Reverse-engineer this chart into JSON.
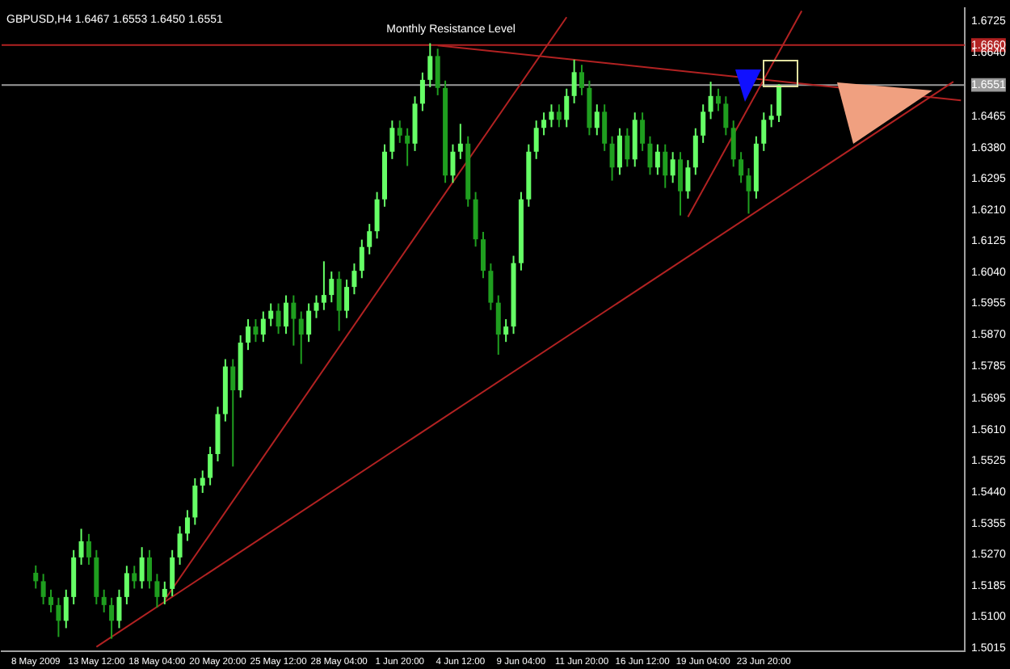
{
  "chart_data": {
    "type": "candlestick",
    "title": "GBPUSD,H4 1.6467 1.6553 1.6450 1.6551",
    "categories": [
      "8 May 2009",
      null,
      null,
      null,
      null,
      null,
      null,
      null,
      "13 May 12:00",
      null,
      null,
      null,
      null,
      null,
      null,
      null,
      "18 May 04:00",
      null,
      null,
      null,
      null,
      null,
      null,
      null,
      "20 May 20:00",
      null,
      null,
      null,
      null,
      null,
      null,
      null,
      "25 May 12:00",
      null,
      null,
      null,
      null,
      null,
      null,
      null,
      "28 May 04:00",
      null,
      null,
      null,
      null,
      null,
      null,
      null,
      "1 Jun 20:00",
      null,
      null,
      null,
      null,
      null,
      null,
      null,
      "4 Jun 12:00",
      null,
      null,
      null,
      null,
      null,
      null,
      null,
      "9 Jun 04:00",
      null,
      null,
      null,
      null,
      null,
      null,
      null,
      "11 Jun 20:00",
      null,
      null,
      null,
      null,
      null,
      null,
      null,
      "16 Jun 12:00",
      null,
      null,
      null,
      null,
      null,
      null,
      null,
      "19 Jun 04:00",
      null,
      null,
      null,
      null,
      null,
      null,
      null,
      "23 Jun 20:00",
      null,
      null,
      null,
      null,
      null,
      null,
      null,
      null,
      null,
      null,
      null,
      null,
      null,
      null,
      null,
      null,
      null,
      null,
      null,
      null,
      null,
      null,
      null,
      null,
      null,
      null
    ],
    "ohlc": [
      [
        1.522,
        1.524,
        1.5177,
        1.5197
      ],
      [
        1.5197,
        1.5217,
        1.5134,
        1.5154
      ],
      [
        1.5154,
        1.5174,
        1.5112,
        1.5132
      ],
      [
        1.5132,
        1.5152,
        1.5045,
        1.5089
      ],
      [
        1.5089,
        1.5174,
        1.5069,
        1.5154
      ],
      [
        1.5154,
        1.5282,
        1.5134,
        1.5262
      ],
      [
        1.5262,
        1.534,
        1.5242,
        1.5306
      ],
      [
        1.5306,
        1.5326,
        1.5242,
        1.5262
      ],
      [
        1.5262,
        1.5282,
        1.5134,
        1.5154
      ],
      [
        1.5154,
        1.5174,
        1.5112,
        1.5132
      ],
      [
        1.5132,
        1.5152,
        1.504,
        1.5089
      ],
      [
        1.5089,
        1.5174,
        1.5069,
        1.5154
      ],
      [
        1.5154,
        1.5239,
        1.5134,
        1.5219
      ],
      [
        1.5219,
        1.5239,
        1.5177,
        1.5197
      ],
      [
        1.5197,
        1.529,
        1.5177,
        1.5262
      ],
      [
        1.5262,
        1.5282,
        1.5177,
        1.5197
      ],
      [
        1.5197,
        1.5217,
        1.5125,
        1.5154
      ],
      [
        1.5154,
        1.5196,
        1.5134,
        1.5176
      ],
      [
        1.5176,
        1.5282,
        1.5156,
        1.5262
      ],
      [
        1.5262,
        1.5347,
        1.5242,
        1.5327
      ],
      [
        1.5327,
        1.5391,
        1.5307,
        1.5371
      ],
      [
        1.5371,
        1.5478,
        1.5351,
        1.5458
      ],
      [
        1.5458,
        1.5499,
        1.5438,
        1.5479
      ],
      [
        1.5479,
        1.5564,
        1.5459,
        1.5544
      ],
      [
        1.5544,
        1.5673,
        1.5524,
        1.5653
      ],
      [
        1.5653,
        1.5803,
        1.5633,
        1.5783
      ],
      [
        1.5783,
        1.5803,
        1.551,
        1.5718
      ],
      [
        1.5718,
        1.5868,
        1.5698,
        1.5848
      ],
      [
        1.5848,
        1.5912,
        1.5828,
        1.5892
      ],
      [
        1.5892,
        1.5912,
        1.585,
        1.587
      ],
      [
        1.587,
        1.5933,
        1.585,
        1.5913
      ],
      [
        1.5913,
        1.5955,
        1.5893,
        1.5935
      ],
      [
        1.5935,
        1.5955,
        1.5872,
        1.5892
      ],
      [
        1.5892,
        1.5977,
        1.5872,
        1.5957
      ],
      [
        1.5957,
        1.5977,
        1.584,
        1.5913
      ],
      [
        1.5913,
        1.5933,
        1.579,
        1.587
      ],
      [
        1.587,
        1.5955,
        1.585,
        1.5935
      ],
      [
        1.5935,
        1.5977,
        1.5915,
        1.5957
      ],
      [
        1.5957,
        1.607,
        1.5937,
        1.5978
      ],
      [
        1.5978,
        1.6042,
        1.5958,
        1.6022
      ],
      [
        1.6022,
        1.6042,
        1.588,
        1.5935
      ],
      [
        1.5935,
        1.602,
        1.5915,
        1.6
      ],
      [
        1.6,
        1.6064,
        1.598,
        1.6044
      ],
      [
        1.6044,
        1.6129,
        1.6024,
        1.6109
      ],
      [
        1.6109,
        1.6172,
        1.6089,
        1.6152
      ],
      [
        1.6152,
        1.6259,
        1.6132,
        1.6239
      ],
      [
        1.6239,
        1.6389,
        1.6219,
        1.6369
      ],
      [
        1.6369,
        1.6454,
        1.6349,
        1.6434
      ],
      [
        1.6434,
        1.6454,
        1.6393,
        1.6413
      ],
      [
        1.6413,
        1.6433,
        1.633,
        1.6391
      ],
      [
        1.6391,
        1.652,
        1.6371,
        1.65
      ],
      [
        1.65,
        1.6585,
        1.648,
        1.6565
      ],
      [
        1.6565,
        1.6665,
        1.6545,
        1.663
      ],
      [
        1.663,
        1.665,
        1.6523,
        1.6543
      ],
      [
        1.6543,
        1.6563,
        1.6284,
        1.6304
      ],
      [
        1.6304,
        1.6389,
        1.6284,
        1.6369
      ],
      [
        1.6369,
        1.6445,
        1.6349,
        1.6391
      ],
      [
        1.6391,
        1.6411,
        1.6219,
        1.6239
      ],
      [
        1.6239,
        1.6259,
        1.611,
        1.613
      ],
      [
        1.613,
        1.615,
        1.6024,
        1.6044
      ],
      [
        1.6044,
        1.6064,
        1.5937,
        1.5957
      ],
      [
        1.5957,
        1.5977,
        1.5815,
        1.587
      ],
      [
        1.587,
        1.5912,
        1.585,
        1.5892
      ],
      [
        1.5892,
        1.6085,
        1.5872,
        1.6065
      ],
      [
        1.6065,
        1.6259,
        1.6045,
        1.6239
      ],
      [
        1.6239,
        1.6389,
        1.6219,
        1.6369
      ],
      [
        1.6369,
        1.6454,
        1.6349,
        1.6434
      ],
      [
        1.6434,
        1.6476,
        1.6414,
        1.6456
      ],
      [
        1.6456,
        1.6498,
        1.6436,
        1.6478
      ],
      [
        1.6478,
        1.6498,
        1.6436,
        1.6456
      ],
      [
        1.6456,
        1.6541,
        1.6436,
        1.6521
      ],
      [
        1.6521,
        1.662,
        1.6501,
        1.6586
      ],
      [
        1.6586,
        1.6606,
        1.6523,
        1.6543
      ],
      [
        1.6543,
        1.6563,
        1.6414,
        1.6434
      ],
      [
        1.6434,
        1.6498,
        1.6414,
        1.6478
      ],
      [
        1.6478,
        1.6498,
        1.6371,
        1.6391
      ],
      [
        1.6391,
        1.6411,
        1.629,
        1.6326
      ],
      [
        1.6326,
        1.6433,
        1.6306,
        1.6413
      ],
      [
        1.6413,
        1.6433,
        1.6328,
        1.6348
      ],
      [
        1.6348,
        1.6476,
        1.6328,
        1.6456
      ],
      [
        1.6456,
        1.6476,
        1.6371,
        1.6391
      ],
      [
        1.6391,
        1.6411,
        1.6306,
        1.6326
      ],
      [
        1.6326,
        1.6389,
        1.6306,
        1.6369
      ],
      [
        1.6369,
        1.6389,
        1.627,
        1.6304
      ],
      [
        1.6304,
        1.6368,
        1.6284,
        1.6348
      ],
      [
        1.6348,
        1.6368,
        1.6195,
        1.6261
      ],
      [
        1.6261,
        1.6346,
        1.6241,
        1.6326
      ],
      [
        1.6326,
        1.6433,
        1.6306,
        1.6413
      ],
      [
        1.6413,
        1.6498,
        1.6393,
        1.6478
      ],
      [
        1.6478,
        1.656,
        1.6458,
        1.6521
      ],
      [
        1.6521,
        1.6541,
        1.648,
        1.65
      ],
      [
        1.65,
        1.652,
        1.6414,
        1.6434
      ],
      [
        1.6434,
        1.6454,
        1.6328,
        1.6348
      ],
      [
        1.6348,
        1.6368,
        1.6284,
        1.6304
      ],
      [
        1.6304,
        1.6324,
        1.62,
        1.6261
      ],
      [
        1.6261,
        1.6411,
        1.6241,
        1.6391
      ],
      [
        1.6391,
        1.6476,
        1.6371,
        1.6456
      ],
      [
        1.6456,
        1.6498,
        1.6436,
        1.6467
      ],
      [
        1.6467,
        1.6553,
        1.645,
        1.6551
      ],
      null,
      null,
      null,
      null,
      null,
      null,
      null,
      null,
      null,
      null,
      null,
      null,
      null,
      null,
      null,
      null,
      null,
      null,
      null,
      null,
      null,
      null,
      null,
      null
    ],
    "colors": [
      "#1f9e1f",
      "#1f9e1f",
      "#1f9e1f",
      "#1f9e1f",
      "#66ff66",
      "#66ff66",
      "#66ff66",
      "#1f9e1f",
      "#1f9e1f",
      "#1f9e1f",
      "#1f9e1f",
      "#66ff66",
      "#66ff66",
      "#1f9e1f",
      "#66ff66",
      "#1f9e1f",
      "#1f9e1f",
      "#66ff66",
      "#66ff66",
      "#66ff66",
      "#66ff66",
      "#66ff66",
      "#66ff66",
      "#66ff66",
      "#66ff66",
      "#66ff66",
      "#1f9e1f",
      "#66ff66",
      "#66ff66",
      "#1f9e1f",
      "#66ff66",
      "#66ff66",
      "#1f9e1f",
      "#66ff66",
      "#1f9e1f",
      "#1f9e1f",
      "#66ff66",
      "#66ff66",
      "#66ff66",
      "#66ff66",
      "#1f9e1f",
      "#66ff66",
      "#66ff66",
      "#66ff66",
      "#66ff66",
      "#66ff66",
      "#66ff66",
      "#66ff66",
      "#1f9e1f",
      "#1f9e1f",
      "#66ff66",
      "#66ff66",
      "#66ff66",
      "#1f9e1f",
      "#1f9e1f",
      "#66ff66",
      "#66ff66",
      "#1f9e1f",
      "#1f9e1f",
      "#1f9e1f",
      "#1f9e1f",
      "#1f9e1f",
      "#66ff66",
      "#66ff66",
      "#66ff66",
      "#66ff66",
      "#66ff66",
      "#66ff66",
      "#66ff66",
      "#1f9e1f",
      "#66ff66",
      "#66ff66",
      "#1f9e1f",
      "#1f9e1f",
      "#66ff66",
      "#1f9e1f",
      "#1f9e1f",
      "#66ff66",
      "#1f9e1f",
      "#66ff66",
      "#1f9e1f",
      "#1f9e1f",
      "#66ff66",
      "#1f9e1f",
      "#66ff66",
      "#1f9e1f",
      "#66ff66",
      "#66ff66",
      "#66ff66",
      "#66ff66",
      "#1f9e1f",
      "#1f9e1f",
      "#1f9e1f",
      "#1f9e1f",
      "#1f9e1f",
      "#66ff66",
      "#66ff66",
      "#66ff66",
      "#66ff66",
      null,
      null,
      null,
      null,
      null,
      null,
      null,
      null,
      null,
      null,
      null,
      null,
      null,
      null,
      null,
      null,
      null,
      null,
      null,
      null,
      null,
      null,
      null,
      null
    ],
    "series": [
      {
        "type": "line",
        "color": "#b22222",
        "values": [
          null,
          null,
          null,
          null,
          null,
          null,
          null,
          null,
          1.5018,
          null,
          null,
          null,
          null,
          null,
          null,
          null,
          null,
          null,
          null,
          null,
          null,
          null,
          null,
          null,
          null,
          null,
          null,
          null,
          null,
          null,
          null,
          null,
          null,
          null,
          null,
          null,
          null,
          null,
          null,
          null,
          null,
          null,
          null,
          null,
          null,
          null,
          null,
          null,
          null,
          null,
          null,
          null,
          null,
          null,
          null,
          null,
          null,
          null,
          null,
          null,
          null,
          null,
          null,
          null,
          null,
          null,
          null,
          null,
          null,
          null,
          null,
          null,
          null,
          null,
          null,
          null,
          null,
          null,
          null,
          null,
          null,
          null,
          null,
          null,
          null,
          null,
          null,
          null,
          null,
          null,
          null,
          null,
          null,
          null,
          null,
          null,
          null,
          null,
          null,
          null,
          null,
          null,
          null,
          null,
          null,
          null,
          null,
          null,
          null,
          null,
          null,
          null,
          null,
          null,
          null,
          null,
          null,
          null,
          null,
          null,
          null,
          1.656,
          null
        ]
      },
      {
        "type": "line",
        "color": "#b22222",
        "values": [
          null,
          null,
          null,
          null,
          null,
          null,
          null,
          null,
          null,
          null,
          null,
          null,
          null,
          null,
          null,
          null,
          null,
          1.5146,
          null,
          null,
          null,
          null,
          null,
          null,
          null,
          null,
          null,
          null,
          null,
          null,
          null,
          null,
          null,
          null,
          null,
          null,
          null,
          null,
          null,
          null,
          null,
          null,
          null,
          null,
          null,
          null,
          null,
          null,
          null,
          null,
          null,
          null,
          null,
          null,
          null,
          null,
          null,
          null,
          null,
          null,
          null,
          null,
          null,
          null,
          null,
          null,
          null,
          null,
          null,
          null,
          1.6736,
          null,
          null,
          null,
          null,
          null,
          null,
          null,
          null,
          null,
          null,
          null,
          null,
          null,
          null,
          null,
          null,
          null,
          null,
          null,
          null,
          null,
          null,
          null,
          null,
          null,
          null,
          null,
          null,
          null,
          null,
          null,
          null,
          null,
          null,
          null,
          null,
          null,
          null,
          null,
          null,
          null,
          null,
          null,
          null,
          null,
          null,
          null,
          null,
          null,
          null,
          null,
          null
        ]
      },
      {
        "type": "line",
        "color": "#b22222",
        "values": [
          null,
          null,
          null,
          null,
          null,
          null,
          null,
          null,
          null,
          null,
          null,
          null,
          null,
          null,
          null,
          null,
          null,
          null,
          null,
          null,
          null,
          null,
          null,
          null,
          null,
          null,
          null,
          null,
          null,
          null,
          null,
          null,
          null,
          null,
          null,
          null,
          null,
          null,
          null,
          null,
          null,
          null,
          null,
          null,
          null,
          null,
          null,
          null,
          null,
          null,
          null,
          null,
          null,
          null,
          null,
          null,
          null,
          null,
          null,
          null,
          null,
          null,
          null,
          null,
          null,
          null,
          null,
          null,
          null,
          null,
          null,
          null,
          null,
          null,
          null,
          null,
          null,
          null,
          null,
          null,
          null,
          null,
          null,
          null,
          null,
          null,
          1.6191,
          null,
          null,
          null,
          null,
          null,
          null,
          null,
          null,
          null,
          null,
          null,
          null,
          null,
          null,
          1.6753,
          null,
          null,
          null,
          null,
          null,
          null,
          null,
          null,
          null,
          null,
          null,
          null,
          null,
          null,
          null,
          null,
          null,
          null,
          null,
          null,
          null
        ]
      },
      {
        "type": "line",
        "color": "#b22222",
        "values": [
          null,
          null,
          null,
          null,
          null,
          null,
          null,
          null,
          null,
          null,
          null,
          null,
          null,
          null,
          null,
          null,
          null,
          null,
          null,
          null,
          null,
          null,
          null,
          null,
          null,
          null,
          null,
          null,
          null,
          null,
          null,
          null,
          null,
          null,
          null,
          null,
          null,
          null,
          null,
          null,
          null,
          null,
          null,
          null,
          null,
          null,
          null,
          null,
          null,
          null,
          null,
          null,
          null,
          1.6659,
          null,
          null,
          null,
          null,
          null,
          null,
          null,
          null,
          null,
          null,
          null,
          null,
          null,
          null,
          null,
          null,
          null,
          null,
          null,
          null,
          null,
          null,
          null,
          null,
          null,
          null,
          null,
          null,
          null,
          null,
          null,
          null,
          null,
          null,
          null,
          null,
          null,
          null,
          null,
          null,
          null,
          null,
          null,
          null,
          null,
          null,
          null,
          null,
          null,
          null,
          null,
          null,
          null,
          null,
          null,
          null,
          null,
          null,
          null,
          null,
          null,
          null,
          null,
          null,
          null,
          null,
          null,
          null,
          1.6509
        ]
      }
    ],
    "ylim": [
      1.5006,
      1.676
    ],
    "yticks": [
      1.6725,
      {
        "value": 1.666,
        "label": "1.6660"
      },
      {
        "value": 1.664,
        "label": "1.6640"
      },
      1.6551,
      1.6465,
      {
        "value": 1.638,
        "label": "1.6380"
      },
      1.6295,
      {
        "value": 1.621,
        "label": "1.6210"
      },
      1.6125,
      {
        "value": 1.604,
        "label": "1.6040"
      },
      1.5955,
      {
        "value": 1.587,
        "label": "1.5870"
      },
      1.5785,
      1.5695,
      {
        "value": 1.561,
        "label": "1.5610"
      },
      1.5525,
      {
        "value": 1.544,
        "label": "1.5440"
      },
      1.5355,
      {
        "value": 1.527,
        "label": "1.5270"
      },
      1.5185,
      {
        "value": 1.51,
        "label": "1.5100"
      },
      1.5015
    ],
    "ref_lines": [
      {
        "axis": "y",
        "value": 1.666,
        "label": "Monthly Resistance Level",
        "color": "#b22222"
      },
      {
        "axis": "y",
        "value": 1.6551,
        "color": "#9a9a9a"
      }
    ],
    "grid": false,
    "legend": false
  }
}
